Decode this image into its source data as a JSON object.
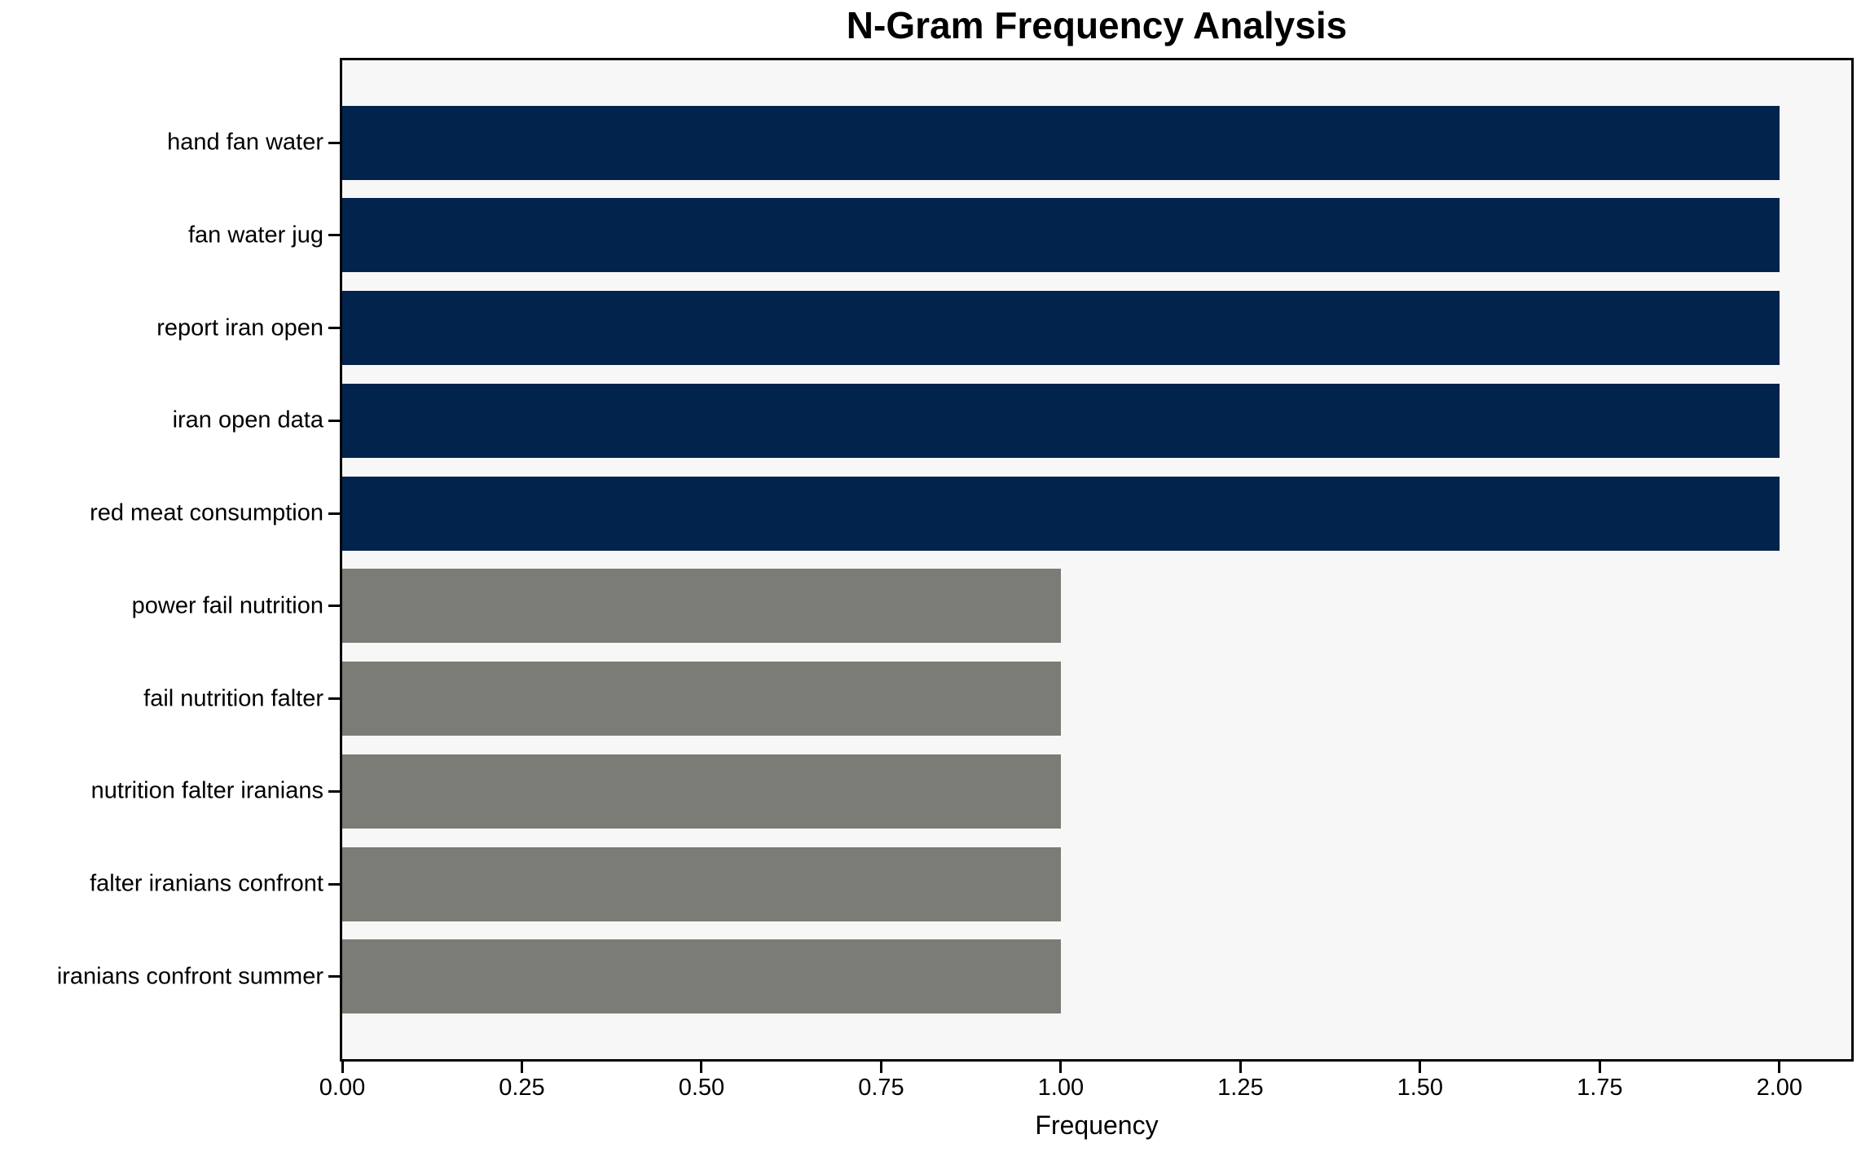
{
  "chart_data": {
    "type": "bar",
    "orientation": "horizontal",
    "title": "N-Gram Frequency Analysis",
    "xlabel": "Frequency",
    "ylabel": "",
    "categories": [
      "hand fan water",
      "fan water jug",
      "report iran open",
      "iran open data",
      "red meat consumption",
      "power fail nutrition",
      "fail nutrition falter",
      "nutrition falter iranians",
      "falter iranians confront",
      "iranians confront summer"
    ],
    "values": [
      2,
      2,
      2,
      2,
      2,
      1,
      1,
      1,
      1,
      1
    ],
    "bar_colors": [
      "#02234c",
      "#02234c",
      "#02234c",
      "#02234c",
      "#02234c",
      "#7c7c77",
      "#7c7c77",
      "#7c7c77",
      "#7c7c77",
      "#7c7c77"
    ],
    "xlim": [
      0,
      2.1
    ],
    "xticks": [
      {
        "value": 0.0,
        "label": "0.00"
      },
      {
        "value": 0.25,
        "label": "0.25"
      },
      {
        "value": 0.5,
        "label": "0.50"
      },
      {
        "value": 0.75,
        "label": "0.75"
      },
      {
        "value": 1.0,
        "label": "1.00"
      },
      {
        "value": 1.25,
        "label": "1.25"
      },
      {
        "value": 1.5,
        "label": "1.50"
      },
      {
        "value": 1.75,
        "label": "1.75"
      },
      {
        "value": 2.0,
        "label": "2.00"
      }
    ],
    "grid": false,
    "legend": null,
    "bar_height_units": 0.8,
    "y_margin_units": 0.89,
    "colors": {
      "high_frequency_bar": "#02234c",
      "low_frequency_bar": "#7c7c77",
      "plot_background": "#f7f7f7",
      "figure_background": "#ffffff",
      "spine": "#000000",
      "text": "#000000"
    }
  }
}
